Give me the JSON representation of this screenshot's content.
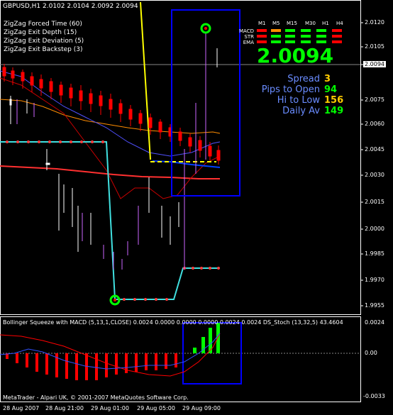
{
  "header": {
    "symbol": "GBPUSD,H1  2.0102 2.0104 2.0092 2.0094"
  },
  "zigzag": [
    "ZigZag Forced Time (60)",
    "ZigZag Exit Depth (15)",
    "ZigZag Exit Deviation (5)",
    "ZigZag Exit Backstep (3)"
  ],
  "panel": {
    "timeframes": [
      "M1",
      "M5",
      "M15",
      "M30",
      "H1",
      "H4"
    ],
    "rows": [
      "MACD",
      "STR",
      "EMA"
    ],
    "price": "2.0094",
    "stats": [
      {
        "label": "Spread",
        "value": "3",
        "color": "#ffcc00"
      },
      {
        "label": "Pips to Open",
        "value": "94",
        "color": "#00ff00"
      },
      {
        "label": "Hi to Low",
        "value": "156",
        "color": "#ffcc00"
      },
      {
        "label": "Daily Av",
        "value": "149",
        "color": "#00ff00"
      }
    ]
  },
  "axis": {
    "price_labels": [
      "2.0120",
      "2.0105",
      "2.0094",
      "2.0075",
      "2.0060",
      "2.0045",
      "2.0030",
      "2.0015",
      "2.0000",
      "1.9985",
      "1.9970",
      "1.9955"
    ],
    "indicator_labels": [
      "0.0024",
      "0.00",
      "-0.0033"
    ],
    "time_labels": [
      "28 Aug 2007",
      "28 Aug 21:00",
      "29 Aug 01:00",
      "29 Aug 05:00",
      "29 Aug 09:00"
    ]
  },
  "indicator": {
    "title": "Bollinger Squeeze with MACD (5,13,1,CLOSE) 0.0024 0.0000 0.0000 0.0000 0.0024 0.0024  DS_Stoch (13,32,5) 43.4604"
  },
  "footer": {
    "copyright": "MetaTrader - Alpari UK, © 2001-2007 MetaQuotes Software Corp."
  },
  "colors": {
    "bull_candle": "#ffffff",
    "bear_candle": "#ff0000",
    "zigzag_cyan": "#40e0e0",
    "zigzag_yellow": "#ffff00",
    "highlight_box": "#0000ff",
    "hist_neg": "#ff0000",
    "hist_pos": "#00ff00"
  }
}
